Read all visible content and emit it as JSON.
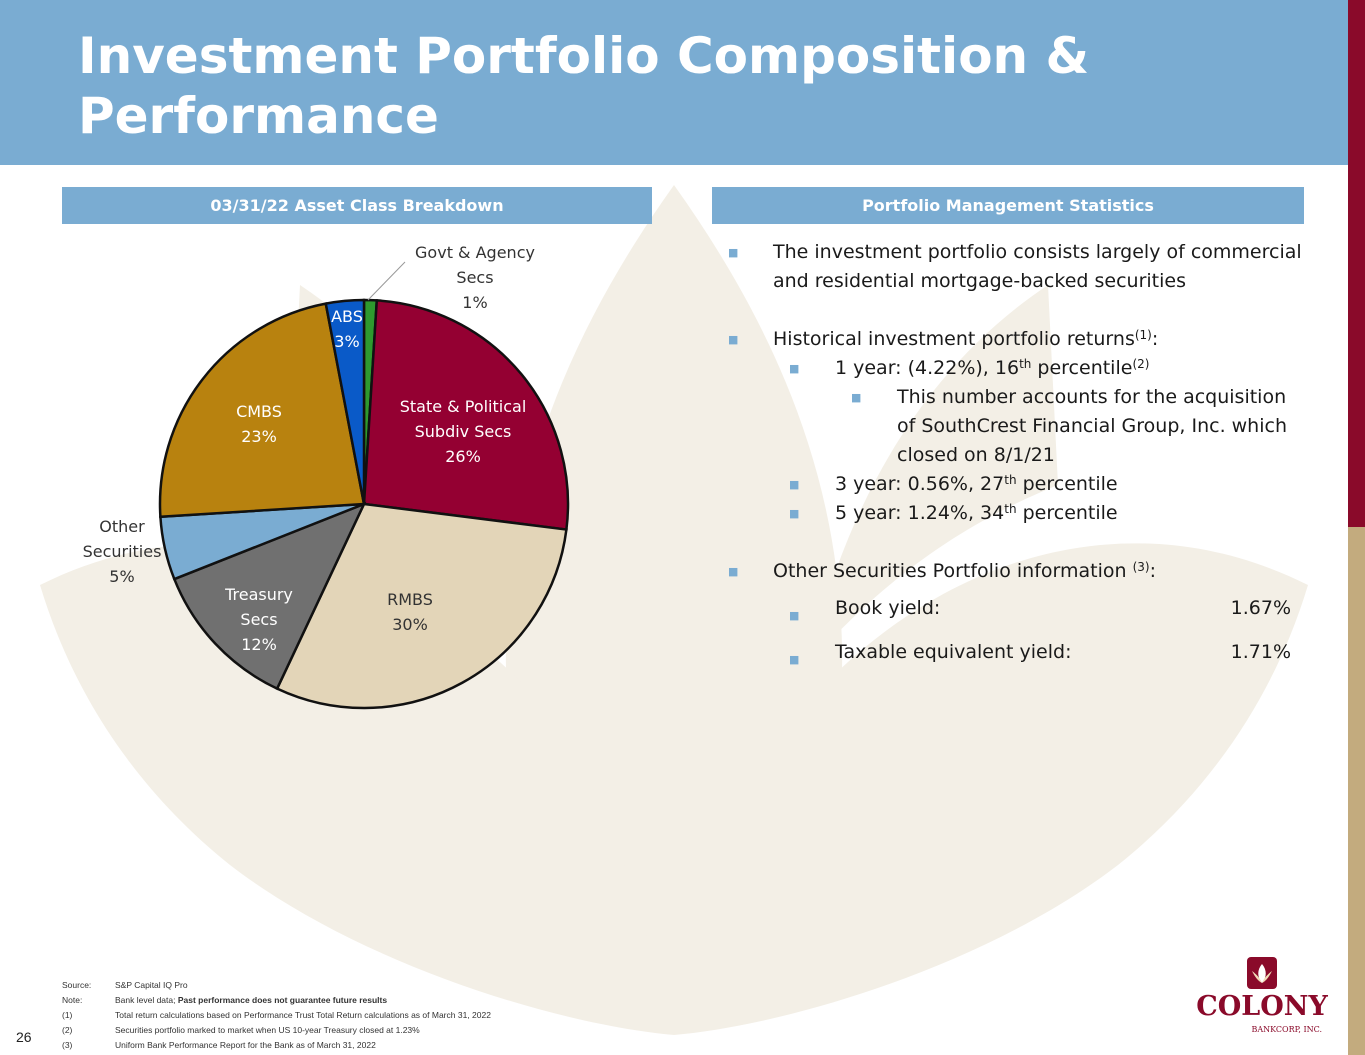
{
  "title": "Investment Portfolio Composition & Performance",
  "left_header": "03/31/22 Asset Class Breakdown",
  "right_header": "Portfolio Management Statistics",
  "colors": {
    "title_bar": "#7aacd2",
    "accent_red": "#8a0a2a",
    "accent_tan": "#c3ab7e"
  },
  "chart_data": {
    "type": "pie",
    "slices": [
      {
        "name": "Govt & Agency Secs",
        "value": 1,
        "label": "1%",
        "color": "#2e9a2e"
      },
      {
        "name": "State & Political Subdiv Secs",
        "value": 26,
        "label": "26%",
        "color": "#940032"
      },
      {
        "name": "RMBS",
        "value": 30,
        "label": "30%",
        "color": "#e3d5b8"
      },
      {
        "name": "Treasury Secs",
        "value": 12,
        "label": "12%",
        "color": "#707070"
      },
      {
        "name": "Other Securities",
        "value": 5,
        "label": "5%",
        "color": "#7aacd2"
      },
      {
        "name": "CMBS",
        "value": 23,
        "label": "23%",
        "color": "#b8820f"
      },
      {
        "name": "ABS",
        "value": 3,
        "label": "3%",
        "color": "#0a5ac8"
      }
    ]
  },
  "stats": {
    "b1": "The investment portfolio consists largely of commercial and residential mortgage-backed securities",
    "b2_text": "Historical investment portfolio returns",
    "b2_sup": "(1)",
    "b2_colon": ":",
    "b2a_text": "1 year: (4.22%), 16",
    "b2a_sup1": "th",
    "b2a_text2": " percentile",
    "b2a_sup2": "(2)",
    "b2a_note": "This number accounts for the acquisition of SouthCrest Financial Group, Inc. which closed on 8/1/21",
    "b2b_text": "3 year: 0.56%, 27",
    "b2b_sup": "th",
    "b2b_text2": " percentile",
    "b2c_text": "5 year: 1.24%, 34",
    "b2c_sup": "th",
    "b2c_text2": " percentile",
    "b3_text": "Other Securities Portfolio information ",
    "b3_sup": "(3)",
    "b3_colon": ":",
    "book_yield_label": "Book yield:",
    "book_yield_value": "1.67%",
    "tey_label": "Taxable equivalent yield:",
    "tey_value": "1.71%"
  },
  "footnotes": [
    {
      "key": "Source:",
      "text": "S&P Capital IQ Pro",
      "bold": ""
    },
    {
      "key": "Note:",
      "text": "Bank level data; ",
      "bold": "Past performance does not guarantee future results"
    },
    {
      "key": "(1)",
      "text": "Total return calculations based on Performance Trust Total Return calculations as of March 31, 2022",
      "bold": ""
    },
    {
      "key": "(2)",
      "text": "Securities portfolio marked to market when US 10-year Treasury closed at 1.23%",
      "bold": ""
    },
    {
      "key": "(3)",
      "text": "Uniform Bank Performance Report for the Bank as of March 31, 2022",
      "bold": ""
    }
  ],
  "page_number": "26",
  "logo": {
    "word": "COLONY",
    "sub": "BANKCORP, INC."
  }
}
